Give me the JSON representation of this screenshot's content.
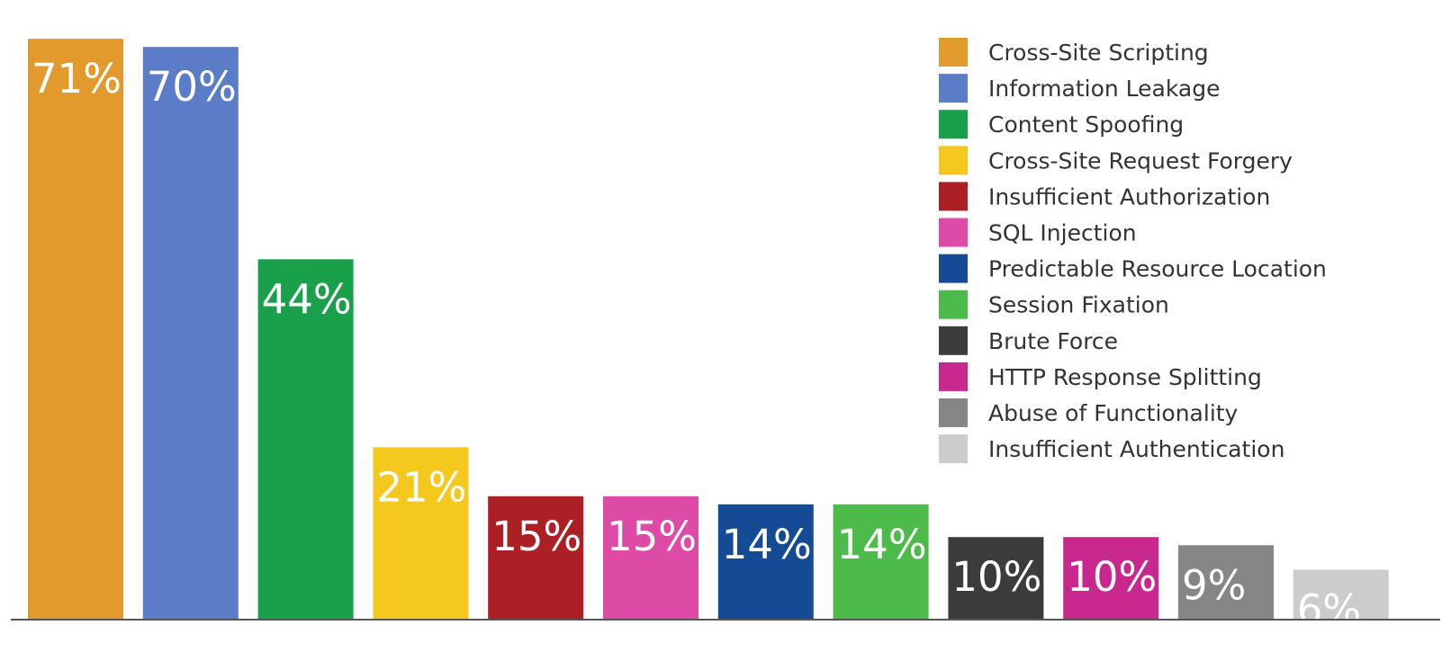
{
  "chart_data": {
    "type": "bar",
    "title": "",
    "xlabel": "",
    "ylabel": "",
    "ylim": [
      0,
      72
    ],
    "grid": false,
    "legend_position": "top-right",
    "categories": [
      "Cross-Site Scripting",
      "Information Leakage",
      "Content Spoofing",
      "Cross-Site Request Forgery",
      "Insufficient Authorization",
      "SQL Injection",
      "Predictable Resource Location",
      "Session Fixation",
      "Brute Force",
      "HTTP Response Splitting",
      "Abuse of Functionality",
      "Insufficient Authentication"
    ],
    "values": [
      71,
      70,
      44,
      21,
      15,
      15,
      14,
      14,
      10,
      10,
      9,
      6
    ],
    "data_labels": [
      "71%",
      "70%",
      "44%",
      "21%",
      "15%",
      "15%",
      "14%",
      "14%",
      "10%",
      "10%",
      "9%",
      "6%"
    ],
    "colors": [
      "#E39A2C",
      "#5B7DC8",
      "#1AA04A",
      "#F5C81E",
      "#AC1F24",
      "#DE4BA6",
      "#154A94",
      "#4CBB4A",
      "#3C3C3C",
      "#C8288E",
      "#868686",
      "#CCCCCC"
    ]
  }
}
